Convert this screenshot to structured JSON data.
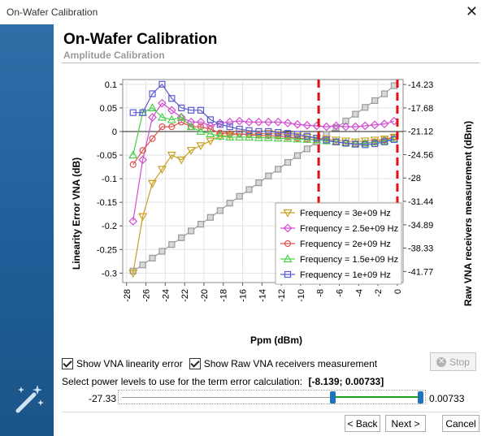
{
  "window": {
    "title": "On-Wafer Calibration"
  },
  "header": {
    "title": "On-Wafer Calibration",
    "subtitle": "Amplitude Calibration"
  },
  "options": {
    "show_linearity_label": "Show VNA linearity error",
    "show_linearity_checked": true,
    "show_raw_label": "Show Raw VNA receivers measurement",
    "show_raw_checked": true,
    "stop_label": "Stop"
  },
  "selection": {
    "prompt": "Select power levels to use for the term error calculation:",
    "range_text": "[-8.139; 0.00733]",
    "min_label": "-27.33",
    "max_label": "0.00733",
    "range_min": -27.33,
    "range_max": 0.00733,
    "low": -8.139,
    "high": 0.00733
  },
  "buttons": {
    "back": "< Back",
    "next": "Next >",
    "cancel": "Cancel"
  },
  "chart_data": {
    "type": "line",
    "xlabel": "Ppm (dBm)",
    "ylabel": "Linearity Error VNA (dB)",
    "y2label": "Raw VNA receivers measurement (dBm)",
    "xlim": [
      -28.4,
      0.6
    ],
    "ylim": [
      -0.32,
      0.11
    ],
    "y2lim": [
      -43.4,
      -13.5
    ],
    "xticks": [
      -28,
      -26,
      -24,
      -22,
      -20,
      -18,
      -16,
      -14,
      -12,
      -10,
      -8,
      -6,
      -4,
      -2,
      0
    ],
    "yticks": [
      0.1,
      0.05,
      0,
      -0.05,
      -0.1,
      -0.15,
      -0.2,
      -0.25,
      -0.3
    ],
    "ytick_labels": [
      "0.1",
      "0.05",
      "0",
      "-0.05",
      "-0.1",
      "-0.15",
      "-0.2",
      "-0.25",
      "-0.3"
    ],
    "y2ticks": [
      -14.23,
      -17.68,
      -21.12,
      -24.56,
      -28,
      -31.44,
      -34.89,
      -38.33,
      -41.77
    ],
    "y2tick_labels": [
      "-14.23",
      "-17.68",
      "-21.12",
      "-24.56",
      "-28",
      "-31.44",
      "-34.89",
      "-38.33",
      "-41.77"
    ],
    "vlines": [
      -8.139,
      0.00733
    ],
    "x": [
      -27.33,
      -26.33,
      -25.33,
      -24.33,
      -23.33,
      -22.33,
      -21.33,
      -20.33,
      -19.33,
      -18.33,
      -17.33,
      -16.33,
      -15.33,
      -14.33,
      -13.33,
      -12.33,
      -11.33,
      -10.33,
      -9.33,
      -8.33,
      -7.33,
      -6.33,
      -5.33,
      -4.33,
      -3.33,
      -2.33,
      -1.33,
      -0.33
    ],
    "series": [
      {
        "name": "Frequency = 3e+09 Hz",
        "color": "#c8a020",
        "marker": "triangle-down",
        "values": [
          -0.3,
          -0.18,
          -0.11,
          -0.08,
          -0.05,
          -0.06,
          -0.04,
          -0.03,
          -0.02,
          -0.01,
          -0.008,
          -0.005,
          -0.006,
          -0.005,
          -0.004,
          -0.006,
          -0.008,
          -0.01,
          -0.012,
          -0.014,
          -0.016,
          -0.018,
          -0.02,
          -0.022,
          -0.02,
          -0.018,
          -0.016,
          -0.012
        ]
      },
      {
        "name": "Frequency = 2.5e+09 Hz",
        "color": "#d24bd2",
        "marker": "diamond",
        "values": [
          -0.19,
          -0.06,
          0.03,
          0.06,
          0.045,
          0.03,
          0.02,
          0.02,
          0.012,
          0.018,
          0.02,
          0.022,
          0.02,
          0.02,
          0.02,
          0.02,
          0.018,
          0.015,
          0.013,
          0.012,
          0.01,
          0.012,
          0.01,
          0.01,
          0.012,
          0.014,
          0.016,
          0.022
        ]
      },
      {
        "name": "Frequency = 2e+09 Hz",
        "color": "#e05050",
        "marker": "circle",
        "values": [
          -0.07,
          -0.04,
          -0.015,
          0.01,
          0.01,
          0.02,
          0.01,
          0.01,
          0.005,
          -0.003,
          -0.005,
          -0.005,
          -0.007,
          -0.008,
          -0.009,
          -0.01,
          -0.012,
          -0.014,
          -0.016,
          -0.018,
          -0.02,
          -0.022,
          -0.024,
          -0.026,
          -0.025,
          -0.022,
          -0.018,
          -0.012
        ]
      },
      {
        "name": "Frequency = 1.5e+09 Hz",
        "color": "#4cd04c",
        "marker": "triangle-up",
        "values": [
          -0.05,
          0.04,
          0.05,
          0.03,
          0.025,
          0.03,
          0.01,
          0.0,
          -0.005,
          -0.01,
          -0.012,
          -0.012,
          -0.012,
          -0.013,
          -0.013,
          -0.014,
          -0.015,
          -0.016,
          -0.017,
          -0.018,
          -0.02,
          -0.022,
          -0.024,
          -0.026,
          -0.025,
          -0.023,
          -0.02,
          -0.015
        ]
      },
      {
        "name": "Frequency = 1e+09 Hz",
        "color": "#5a5ad2",
        "marker": "square",
        "values": [
          0.04,
          0.04,
          0.08,
          0.1,
          0.07,
          0.05,
          0.045,
          0.045,
          0.025,
          0.015,
          0.01,
          0.005,
          0.002,
          0.0,
          0.0,
          -0.002,
          -0.004,
          -0.006,
          -0.01,
          -0.014,
          -0.018,
          -0.022,
          -0.025,
          -0.027,
          -0.028,
          -0.026,
          -0.022,
          -0.017
        ]
      }
    ],
    "raw_series": {
      "color": "#9a9a9a",
      "marker": "square",
      "axis": "y2",
      "values": [
        -41.7,
        -40.8,
        -39.8,
        -38.8,
        -37.8,
        -36.8,
        -35.8,
        -34.8,
        -33.8,
        -32.8,
        -31.7,
        -30.7,
        -29.7,
        -28.7,
        -27.7,
        -26.7,
        -25.7,
        -24.7,
        -23.7,
        -22.7,
        -21.6,
        -20.6,
        -19.6,
        -18.6,
        -17.6,
        -16.6,
        -15.6,
        -14.4
      ]
    }
  }
}
